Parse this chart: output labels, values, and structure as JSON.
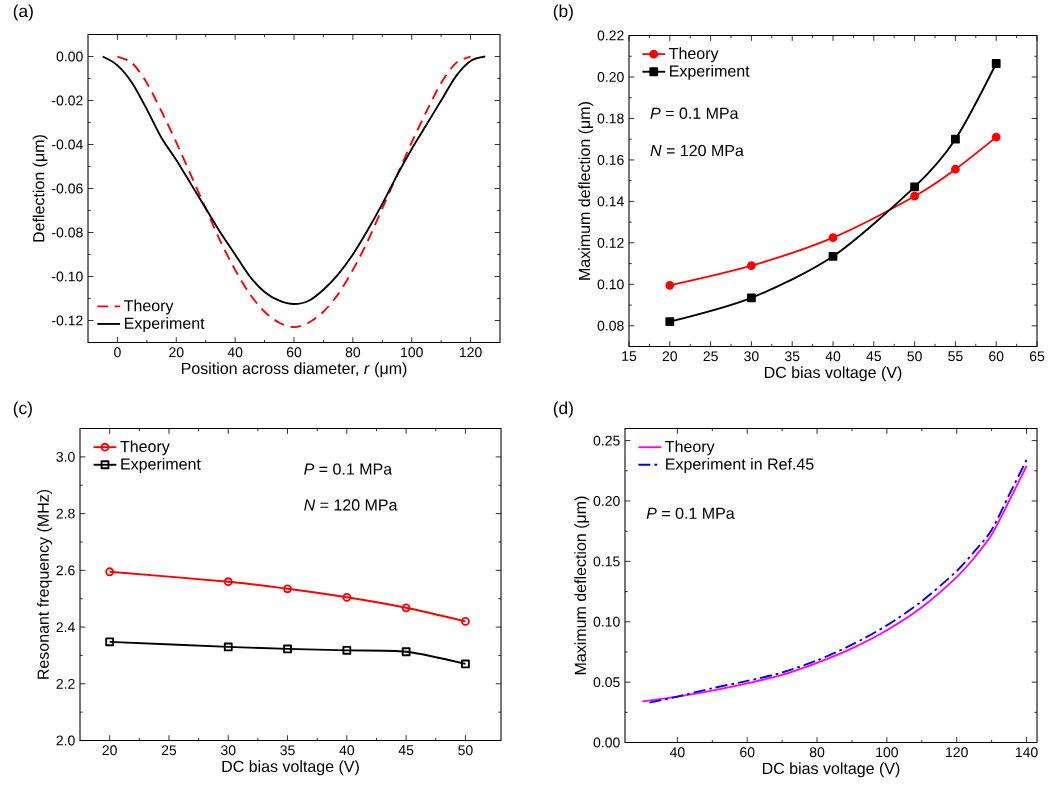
{
  "chart_data": [
    {
      "type": "line",
      "title": "(a)",
      "xlabel": "Position across diameter, *r* (μm)",
      "ylabel": "Deflection (μm)",
      "xlim": [
        -10,
        130
      ],
      "xticks": [
        0,
        20,
        40,
        60,
        80,
        100,
        120
      ],
      "ylim": [
        -0.13,
        0.01
      ],
      "yticks": [
        {
          "value": -0.12,
          "label": "-0.12"
        },
        {
          "value": -0.1,
          "label": "-0.10"
        },
        {
          "value": -0.08,
          "label": "-0.08"
        },
        {
          "value": -0.06,
          "label": "-0.06"
        },
        {
          "value": -0.04,
          "label": "-0.04"
        },
        {
          "value": -0.02,
          "label": "-0.02"
        },
        {
          "value": 0,
          "label": "0.00"
        }
      ],
      "legend": "bottom left",
      "series": [
        {
          "name": "Theory",
          "color": "#ff0000",
          "line_style": "dashed",
          "x": [
            0,
            5,
            10,
            15,
            20,
            25,
            30,
            35,
            40,
            45,
            50,
            55,
            60,
            65,
            70,
            75,
            80,
            85,
            90,
            95,
            100,
            105,
            110,
            115,
            120
          ],
          "values": [
            0,
            -0.003,
            -0.012,
            -0.025,
            -0.039,
            -0.054,
            -0.069,
            -0.084,
            -0.097,
            -0.108,
            -0.116,
            -0.121,
            -0.123,
            -0.121,
            -0.116,
            -0.108,
            -0.097,
            -0.084,
            -0.069,
            -0.054,
            -0.039,
            -0.025,
            -0.012,
            -0.003,
            0
          ]
        },
        {
          "name": "Experiment",
          "color": "#000000",
          "line_style": "solid",
          "x": [
            -5,
            0,
            5,
            10,
            15,
            20,
            25,
            30,
            35,
            40,
            45,
            50,
            55,
            60,
            65,
            70,
            75,
            80,
            85,
            90,
            95,
            100,
            105,
            110,
            115,
            120,
            125
          ],
          "values": [
            0,
            -0.004,
            -0.012,
            -0.024,
            -0.037,
            -0.047,
            -0.058,
            -0.069,
            -0.08,
            -0.09,
            -0.1,
            -0.107,
            -0.111,
            -0.1125,
            -0.111,
            -0.106,
            -0.099,
            -0.09,
            -0.079,
            -0.067,
            -0.054,
            -0.042,
            -0.031,
            -0.02,
            -0.009,
            -0.002,
            0
          ]
        }
      ]
    },
    {
      "type": "line",
      "title": "(b)",
      "xlabel": "DC bias voltage (V)",
      "ylabel": "Maximum deflection (μm)",
      "xlim": [
        15,
        65
      ],
      "xticks": [
        15,
        20,
        25,
        30,
        35,
        40,
        45,
        50,
        55,
        60,
        65
      ],
      "ylim": [
        0.07,
        0.22
      ],
      "yticks": [
        {
          "value": 0.08,
          "label": "0.08"
        },
        {
          "value": 0.1,
          "label": "0.10"
        },
        {
          "value": 0.12,
          "label": "0.12"
        },
        {
          "value": 0.14,
          "label": "0.14"
        },
        {
          "value": 0.16,
          "label": "0.16"
        },
        {
          "value": 0.18,
          "label": "0.18"
        },
        {
          "value": 0.2,
          "label": "0.20"
        },
        {
          "value": 0.22,
          "label": "0.22"
        }
      ],
      "legend": "top left",
      "annotations": [
        "*P* = 0.1 MPa",
        "*N* = 120 MPa"
      ],
      "series": [
        {
          "name": "Theory",
          "color": "#ff0000",
          "marker": "circle",
          "line_style": "solid",
          "x": [
            20,
            30,
            40,
            50,
            55,
            60
          ],
          "values": [
            0.0995,
            0.109,
            0.1225,
            0.1425,
            0.1555,
            0.171
          ]
        },
        {
          "name": "Experiment",
          "color": "#000000",
          "marker": "square",
          "line_style": "solid",
          "x": [
            20,
            30,
            40,
            50,
            55,
            60
          ],
          "values": [
            0.082,
            0.0935,
            0.1135,
            0.147,
            0.17,
            0.2065
          ]
        }
      ]
    },
    {
      "type": "line",
      "title": "(c)",
      "xlabel": "DC bias voltage (V)",
      "ylabel": "Resonant frequency (MHz)",
      "xlim": [
        17.5,
        53
      ],
      "xticks": [
        20,
        25,
        30,
        35,
        40,
        45,
        50
      ],
      "ylim": [
        2.0,
        3.1
      ],
      "yticks": [
        {
          "value": 2.0,
          "label": "2.0"
        },
        {
          "value": 2.2,
          "label": "2.2"
        },
        {
          "value": 2.4,
          "label": "2.4"
        },
        {
          "value": 2.6,
          "label": "2.6"
        },
        {
          "value": 2.8,
          "label": "2.8"
        },
        {
          "value": 3.0,
          "label": "3.0"
        }
      ],
      "legend": "top left",
      "annotations": [
        "*P* = 0.1 MPa",
        "*N* = 120 MPa"
      ],
      "series": [
        {
          "name": "Theory",
          "color": "#ff0000",
          "marker": "circle",
          "line_style": "solid",
          "x": [
            20,
            30,
            35,
            40,
            45,
            50
          ],
          "values": [
            2.595,
            2.56,
            2.535,
            2.505,
            2.468,
            2.42
          ]
        },
        {
          "name": "Experiment",
          "color": "#000000",
          "marker": "square",
          "line_style": "solid",
          "x": [
            20,
            30,
            35,
            40,
            45,
            50
          ],
          "values": [
            2.348,
            2.33,
            2.323,
            2.318,
            2.313,
            2.27
          ]
        }
      ]
    },
    {
      "type": "line",
      "title": "(d)",
      "xlabel": "DC bias voltage (V)",
      "ylabel": "Maximum deflection (μm)",
      "xlim": [
        25,
        143
      ],
      "xticks": [
        40,
        60,
        80,
        100,
        120,
        140
      ],
      "ylim": [
        0,
        0.26
      ],
      "yticks": [
        {
          "value": 0,
          "label": "0.00"
        },
        {
          "value": 0.05,
          "label": "0.05"
        },
        {
          "value": 0.1,
          "label": "0.10"
        },
        {
          "value": 0.15,
          "label": "0.15"
        },
        {
          "value": 0.2,
          "label": "0.20"
        },
        {
          "value": 0.25,
          "label": "0.25"
        }
      ],
      "legend": "top left",
      "annotations": [
        "*P* = 0.1 MPa"
      ],
      "series": [
        {
          "name": "Theory",
          "color": "#ff00ff",
          "line_style": "solid",
          "x": [
            30,
            40,
            50,
            60,
            70,
            80,
            90,
            100,
            110,
            120,
            125,
            130,
            135,
            140
          ],
          "values": [
            0.034,
            0.038,
            0.043,
            0.049,
            0.056,
            0.066,
            0.078,
            0.093,
            0.112,
            0.137,
            0.153,
            0.172,
            0.2,
            0.229
          ]
        },
        {
          "name": "Experiment  in Ref.45",
          "color": "#0000ff",
          "line_style": "dashdot",
          "x": [
            32,
            40,
            50,
            60,
            70,
            80,
            90,
            100,
            110,
            120,
            125,
            130,
            135,
            140
          ],
          "values": [
            0.033,
            0.038,
            0.045,
            0.051,
            0.058,
            0.068,
            0.081,
            0.097,
            0.117,
            0.142,
            0.158,
            0.176,
            0.205,
            0.234
          ]
        }
      ]
    }
  ]
}
